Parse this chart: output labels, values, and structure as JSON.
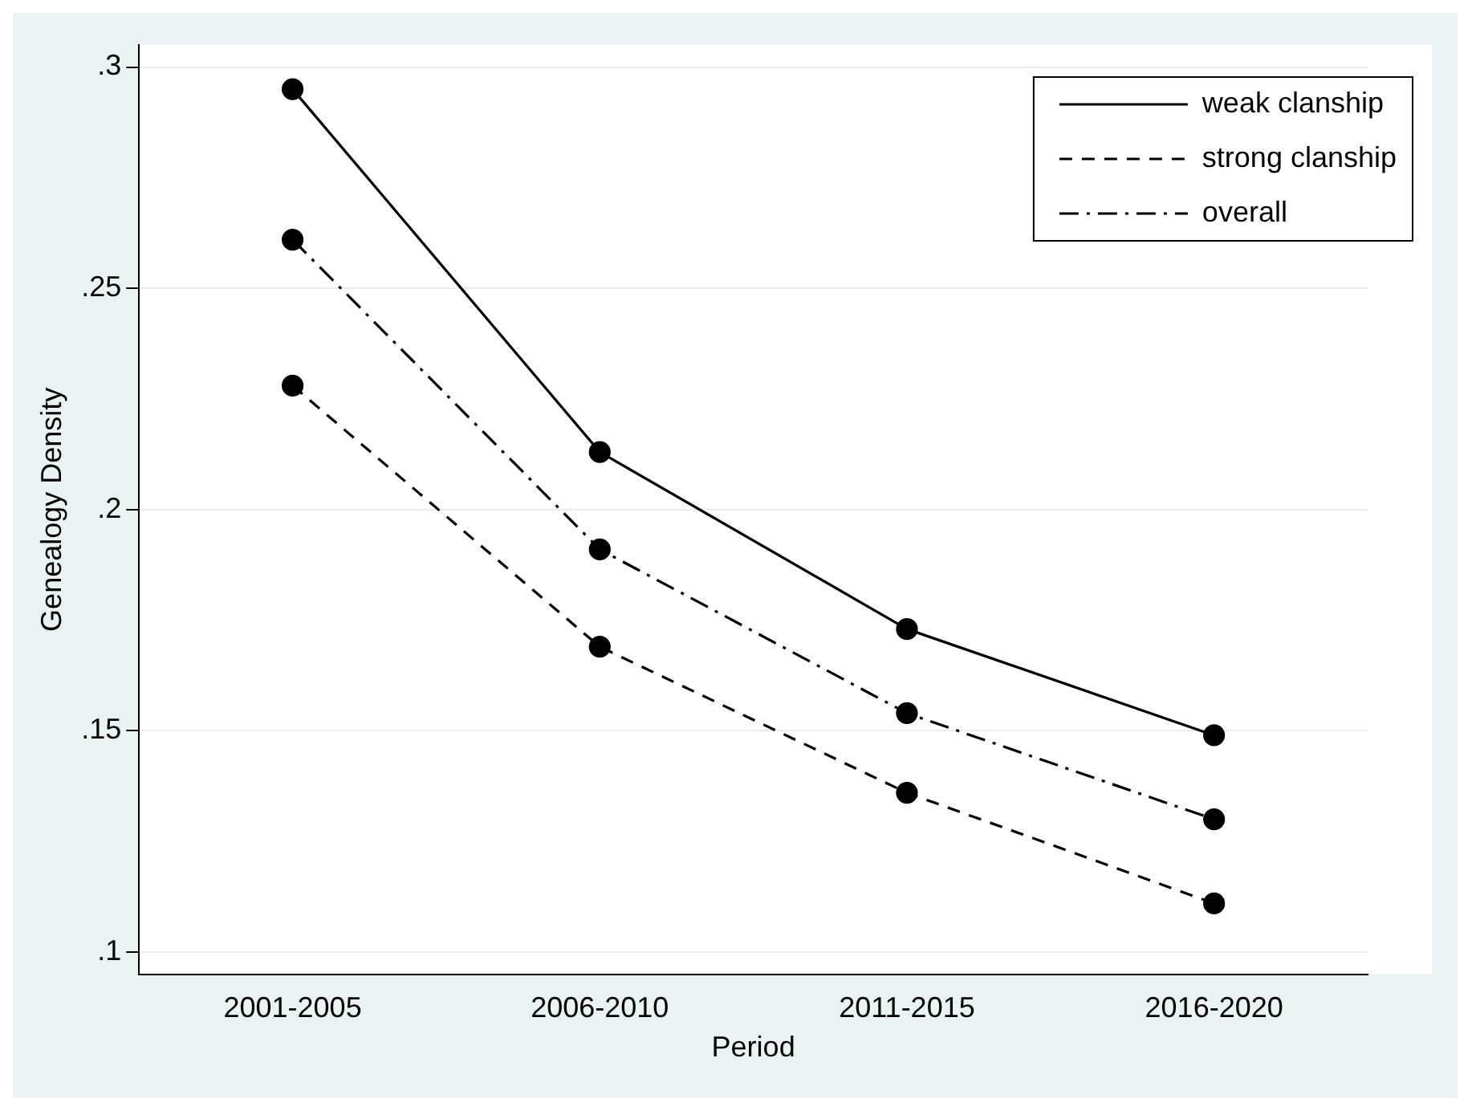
{
  "chart_data": {
    "type": "line",
    "xlabel": "Period",
    "ylabel": "Genealogy Density",
    "categories": [
      "2001-2005",
      "2006-2010",
      "2011-2015",
      "2016-2020"
    ],
    "series": [
      {
        "name": "weak clanship",
        "color": "#000000",
        "line_style": "solid",
        "values": [
          0.295,
          0.213,
          0.173,
          0.149
        ]
      },
      {
        "name": "strong clanship",
        "color": "#000000",
        "line_style": "dashed",
        "values": [
          0.228,
          0.169,
          0.136,
          0.111
        ]
      },
      {
        "name": "overall",
        "color": "#000000",
        "line_style": "dashdot",
        "values": [
          0.261,
          0.191,
          0.154,
          0.13
        ]
      }
    ],
    "ylim": [
      0.095,
      0.305
    ],
    "yticks": [
      {
        "value": 0.1,
        "label": ".1"
      },
      {
        "value": 0.15,
        "label": ".15"
      },
      {
        "value": 0.2,
        "label": ".2"
      },
      {
        "value": 0.25,
        "label": ".25"
      },
      {
        "value": 0.3,
        "label": ".3"
      }
    ],
    "grid": "y",
    "legend": "top right",
    "marker": "circle"
  }
}
